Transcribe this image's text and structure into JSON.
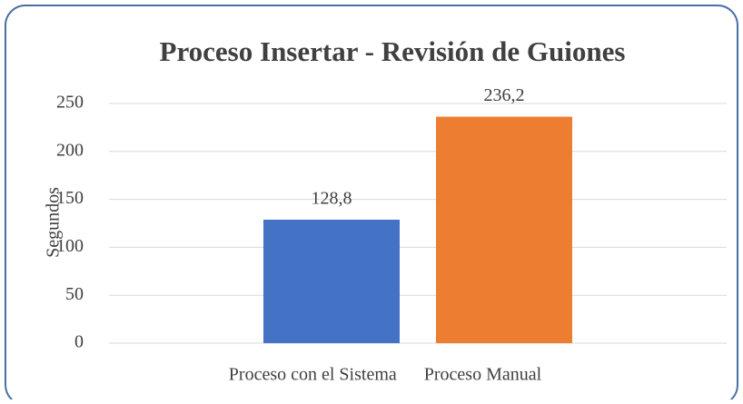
{
  "chart_data": {
    "type": "bar",
    "title": "Proceso Insertar - Revisión de Guiones",
    "y_label": "Segundos",
    "categories": [
      null
    ],
    "series": [
      {
        "name": "Proceso con el Sistema",
        "color": "#4472c4",
        "values": [
          128.8
        ],
        "value_labels": [
          "128,8"
        ]
      },
      {
        "name": "Proceso Manual",
        "color": "#ed7d31",
        "values": [
          236.2
        ],
        "value_labels": [
          "236,2"
        ]
      }
    ],
    "ylim": [
      0,
      250
    ],
    "yticks": [
      0,
      50,
      100,
      150,
      200,
      250
    ],
    "grid": true,
    "legend": "bottom"
  }
}
